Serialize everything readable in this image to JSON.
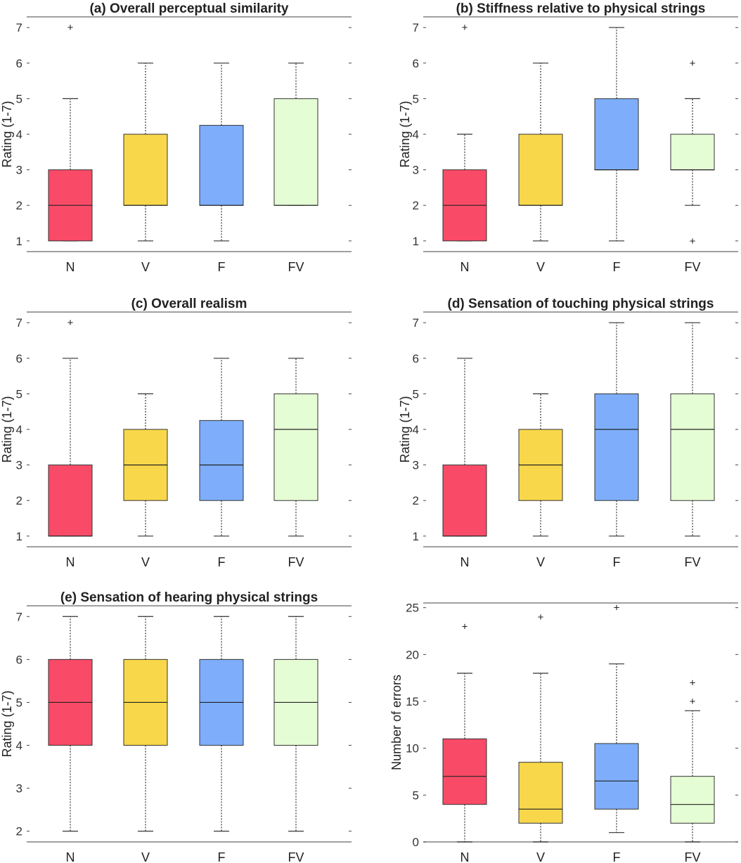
{
  "chart_data": [
    {
      "type": "box",
      "title": "(a) Overall perceptual similarity",
      "ylabel": "Rating (1-7)",
      "ylim": [
        0.7,
        7.3
      ],
      "yticks": [
        1,
        2,
        3,
        4,
        5,
        6,
        7
      ],
      "categories": [
        "N",
        "V",
        "F",
        "FV"
      ],
      "boxes": [
        {
          "whisker_low": 1,
          "q1": 1,
          "median": 2,
          "q3": 3,
          "whisker_high": 5,
          "outliers": [
            7
          ]
        },
        {
          "whisker_low": 1,
          "q1": 2,
          "median": 2,
          "q3": 4,
          "whisker_high": 6,
          "outliers": []
        },
        {
          "whisker_low": 1,
          "q1": 2,
          "median": 2,
          "q3": 4.25,
          "whisker_high": 6,
          "outliers": []
        },
        {
          "whisker_low": 2,
          "q1": 2,
          "median": 2,
          "q3": 5,
          "whisker_high": 6,
          "outliers": []
        }
      ]
    },
    {
      "type": "box",
      "title": "(b) Stiffness relative to physical strings",
      "ylabel": "Rating (1-7)",
      "ylim": [
        0.7,
        7.3
      ],
      "yticks": [
        1,
        2,
        3,
        4,
        5,
        6,
        7
      ],
      "categories": [
        "N",
        "V",
        "F",
        "FV"
      ],
      "boxes": [
        {
          "whisker_low": 1,
          "q1": 1,
          "median": 2,
          "q3": 3,
          "whisker_high": 4,
          "outliers": [
            7
          ]
        },
        {
          "whisker_low": 1,
          "q1": 2,
          "median": 2,
          "q3": 4,
          "whisker_high": 6,
          "outliers": []
        },
        {
          "whisker_low": 1,
          "q1": 3,
          "median": 3,
          "q3": 5,
          "whisker_high": 7,
          "outliers": []
        },
        {
          "whisker_low": 2,
          "q1": 3,
          "median": 3,
          "q3": 4,
          "whisker_high": 5,
          "outliers": [
            1,
            6
          ]
        }
      ]
    },
    {
      "type": "box",
      "title": "(c) Overall realism",
      "ylabel": "Rating (1-7)",
      "ylim": [
        0.7,
        7.3
      ],
      "yticks": [
        1,
        2,
        3,
        4,
        5,
        6,
        7
      ],
      "categories": [
        "N",
        "V",
        "F",
        "FV"
      ],
      "boxes": [
        {
          "whisker_low": 1,
          "q1": 1,
          "median": 1,
          "q3": 3,
          "whisker_high": 6,
          "outliers": [
            7
          ]
        },
        {
          "whisker_low": 1,
          "q1": 2,
          "median": 3,
          "q3": 4,
          "whisker_high": 5,
          "outliers": []
        },
        {
          "whisker_low": 1,
          "q1": 2,
          "median": 3,
          "q3": 4.25,
          "whisker_high": 6,
          "outliers": []
        },
        {
          "whisker_low": 1,
          "q1": 2,
          "median": 4,
          "q3": 5,
          "whisker_high": 6,
          "outliers": []
        }
      ]
    },
    {
      "type": "box",
      "title": "(d) Sensation of touching physical strings",
      "ylabel": "Rating (1-7)",
      "ylim": [
        0.7,
        7.3
      ],
      "yticks": [
        1,
        2,
        3,
        4,
        5,
        6,
        7
      ],
      "categories": [
        "N",
        "V",
        "F",
        "FV"
      ],
      "boxes": [
        {
          "whisker_low": 1,
          "q1": 1,
          "median": 1,
          "q3": 3,
          "whisker_high": 6,
          "outliers": []
        },
        {
          "whisker_low": 1,
          "q1": 2,
          "median": 3,
          "q3": 4,
          "whisker_high": 5,
          "outliers": []
        },
        {
          "whisker_low": 1,
          "q1": 2,
          "median": 4,
          "q3": 5,
          "whisker_high": 7,
          "outliers": []
        },
        {
          "whisker_low": 1,
          "q1": 2,
          "median": 4,
          "q3": 5,
          "whisker_high": 7,
          "outliers": []
        }
      ]
    },
    {
      "type": "box",
      "title": "(e) Sensation of hearing physical strings",
      "ylabel": "Rating (1-7)",
      "ylim": [
        1.75,
        7.25
      ],
      "yticks": [
        2,
        3,
        4,
        5,
        6,
        7
      ],
      "categories": [
        "N",
        "V",
        "F",
        "FV"
      ],
      "boxes": [
        {
          "whisker_low": 2,
          "q1": 4,
          "median": 5,
          "q3": 6,
          "whisker_high": 7,
          "outliers": []
        },
        {
          "whisker_low": 2,
          "q1": 4,
          "median": 5,
          "q3": 6,
          "whisker_high": 7,
          "outliers": []
        },
        {
          "whisker_low": 2,
          "q1": 4,
          "median": 5,
          "q3": 6,
          "whisker_high": 7,
          "outliers": []
        },
        {
          "whisker_low": 2,
          "q1": 4,
          "median": 5,
          "q3": 6,
          "whisker_high": 7,
          "outliers": []
        }
      ]
    },
    {
      "type": "box",
      "title": "",
      "ylabel": "Number of errors",
      "ylim": [
        0,
        25.5
      ],
      "yticks": [
        0,
        5,
        10,
        15,
        20,
        25
      ],
      "categories": [
        "N",
        "V",
        "F",
        "FV"
      ],
      "boxes": [
        {
          "whisker_low": 0,
          "q1": 4,
          "median": 7,
          "q3": 11,
          "whisker_high": 18,
          "outliers": [
            23
          ]
        },
        {
          "whisker_low": 0,
          "q1": 2,
          "median": 3.5,
          "q3": 8.5,
          "whisker_high": 18,
          "outliers": [
            24
          ]
        },
        {
          "whisker_low": 1,
          "q1": 3.5,
          "median": 6.5,
          "q3": 10.5,
          "whisker_high": 19,
          "outliers": [
            25
          ]
        },
        {
          "whisker_low": 0,
          "q1": 2,
          "median": 4,
          "q3": 7,
          "whisker_high": 14,
          "outliers": [
            15,
            17
          ]
        }
      ]
    }
  ],
  "colors": [
    "#f94b67",
    "#f8d84a",
    "#7eaefb",
    "#e5fdd4"
  ]
}
